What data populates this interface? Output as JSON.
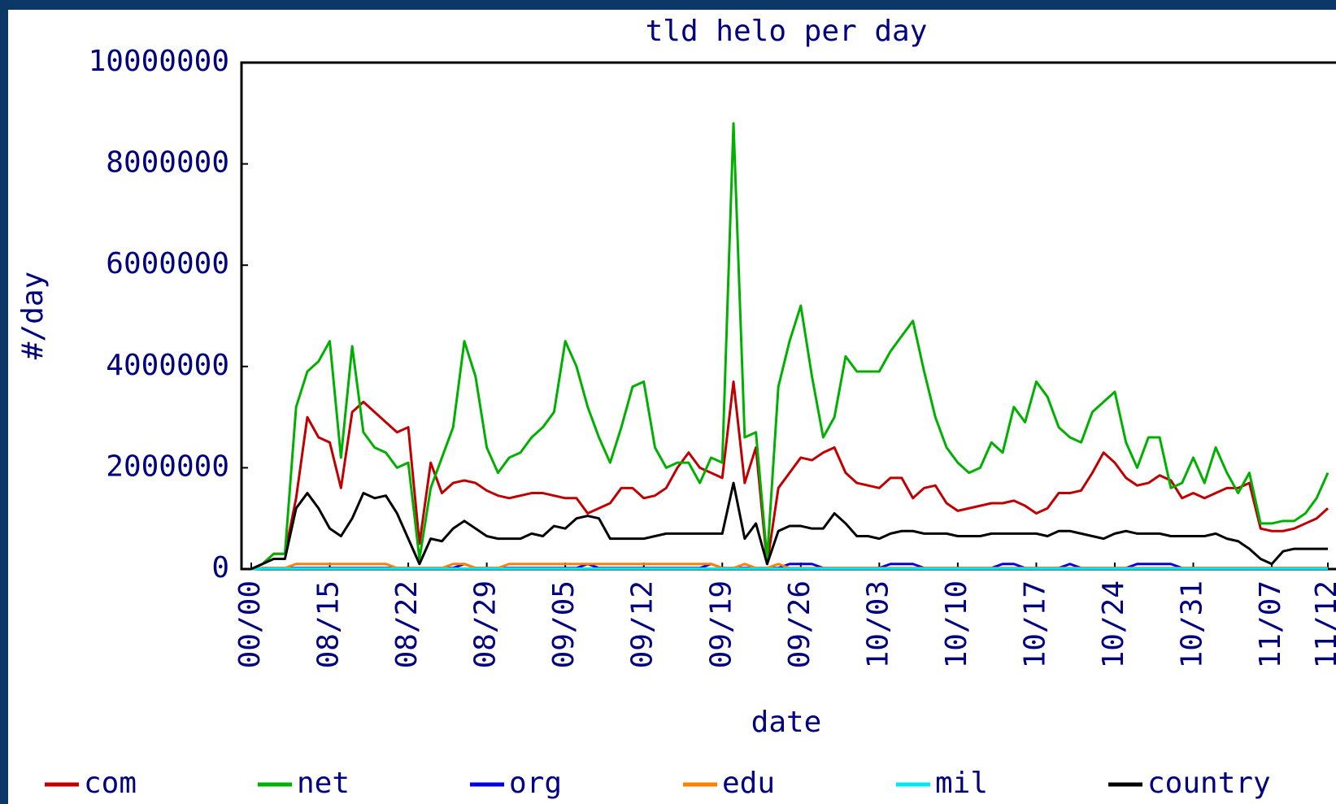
{
  "chart_data": {
    "type": "line",
    "title": "tld helo per day",
    "x_label": "date",
    "y_label": "#/day",
    "categories": [
      "00/00",
      null,
      null,
      null,
      null,
      null,
      null,
      "08/15",
      null,
      null,
      null,
      null,
      null,
      null,
      "08/22",
      null,
      null,
      null,
      null,
      null,
      null,
      "08/29",
      null,
      null,
      null,
      null,
      null,
      null,
      "09/05",
      null,
      null,
      null,
      null,
      null,
      null,
      "09/12",
      null,
      null,
      null,
      null,
      null,
      null,
      "09/19",
      null,
      null,
      null,
      null,
      null,
      null,
      "09/26",
      null,
      null,
      null,
      null,
      null,
      null,
      "10/03",
      null,
      null,
      null,
      null,
      null,
      null,
      "10/10",
      null,
      null,
      null,
      null,
      null,
      null,
      "10/17",
      null,
      null,
      null,
      null,
      null,
      null,
      "10/24",
      null,
      null,
      null,
      null,
      null,
      null,
      "10/31",
      null,
      null,
      null,
      null,
      null,
      null,
      "11/07",
      null,
      null,
      null,
      null,
      "11/12"
    ],
    "ylim": [
      0,
      10000000
    ],
    "yticks": [
      0,
      2000000,
      4000000,
      6000000,
      8000000,
      10000000
    ],
    "series": [
      {
        "name": "com",
        "color": "#c00000",
        "values": [
          0,
          100000,
          300000,
          300000,
          1400000,
          3000000,
          2600000,
          2500000,
          1600000,
          3100000,
          3300000,
          3100000,
          2900000,
          2700000,
          2800000,
          500000,
          2100000,
          1500000,
          1700000,
          1750000,
          1700000,
          1550000,
          1450000,
          1400000,
          1450000,
          1500000,
          1500000,
          1450000,
          1400000,
          1400000,
          1100000,
          1200000,
          1300000,
          1600000,
          1600000,
          1400000,
          1450000,
          1600000,
          2000000,
          2300000,
          2000000,
          1900000,
          1800000,
          3700000,
          1700000,
          2400000,
          100000,
          1600000,
          1900000,
          2200000,
          2150000,
          2300000,
          2400000,
          1900000,
          1700000,
          1650000,
          1600000,
          1800000,
          1800000,
          1400000,
          1600000,
          1650000,
          1300000,
          1150000,
          1200000,
          1250000,
          1300000,
          1300000,
          1350000,
          1250000,
          1100000,
          1200000,
          1500000,
          1500000,
          1550000,
          1900000,
          2300000,
          2100000,
          1800000,
          1650000,
          1700000,
          1850000,
          1750000,
          1400000,
          1500000,
          1400000,
          1500000,
          1600000,
          1600000,
          1700000,
          800000,
          750000,
          750000,
          800000,
          900000,
          1000000,
          1200000
        ]
      },
      {
        "name": "net",
        "color": "#00b000",
        "values": [
          0,
          100000,
          300000,
          300000,
          3200000,
          3900000,
          4100000,
          4500000,
          2200000,
          4400000,
          2700000,
          2400000,
          2300000,
          2000000,
          2100000,
          200000,
          1600000,
          2200000,
          2800000,
          4500000,
          3800000,
          2400000,
          1900000,
          2200000,
          2300000,
          2600000,
          2800000,
          3100000,
          4500000,
          4000000,
          3200000,
          2600000,
          2100000,
          2800000,
          3600000,
          3700000,
          2400000,
          2000000,
          2100000,
          2100000,
          1700000,
          2200000,
          2100000,
          8800000,
          2600000,
          2700000,
          200000,
          3600000,
          4500000,
          5200000,
          3800000,
          2600000,
          3000000,
          4200000,
          3900000,
          3900000,
          3900000,
          4300000,
          4600000,
          4900000,
          3900000,
          3000000,
          2400000,
          2100000,
          1900000,
          2000000,
          2500000,
          2300000,
          3200000,
          2900000,
          3700000,
          3400000,
          2800000,
          2600000,
          2500000,
          3100000,
          3300000,
          3500000,
          2500000,
          2000000,
          2600000,
          2600000,
          1600000,
          1700000,
          2200000,
          1700000,
          2400000,
          1900000,
          1500000,
          1900000,
          900000,
          900000,
          950000,
          950000,
          1100000,
          1400000,
          1900000
        ]
      },
      {
        "name": "org",
        "color": "#0000e0",
        "values": [
          0,
          20000,
          20000,
          20000,
          20000,
          20000,
          20000,
          20000,
          20000,
          20000,
          20000,
          20000,
          20000,
          20000,
          20000,
          20000,
          20000,
          20000,
          20000,
          100000,
          20000,
          20000,
          20000,
          20000,
          20000,
          20000,
          20000,
          20000,
          20000,
          20000,
          100000,
          20000,
          20000,
          20000,
          20000,
          20000,
          20000,
          20000,
          20000,
          20000,
          20000,
          100000,
          20000,
          20000,
          20000,
          20000,
          20000,
          20000,
          100000,
          100000,
          100000,
          20000,
          20000,
          20000,
          20000,
          20000,
          20000,
          100000,
          100000,
          100000,
          20000,
          20000,
          20000,
          20000,
          20000,
          20000,
          20000,
          100000,
          100000,
          20000,
          20000,
          20000,
          20000,
          100000,
          20000,
          20000,
          20000,
          20000,
          20000,
          100000,
          100000,
          100000,
          100000,
          20000,
          20000,
          20000,
          20000,
          20000,
          20000,
          20000,
          20000,
          20000,
          20000,
          20000,
          20000,
          20000,
          20000
        ]
      },
      {
        "name": "edu",
        "color": "#ff8000",
        "values": [
          0,
          20000,
          20000,
          20000,
          100000,
          100000,
          100000,
          100000,
          100000,
          100000,
          100000,
          100000,
          100000,
          20000,
          20000,
          20000,
          20000,
          20000,
          100000,
          100000,
          20000,
          20000,
          20000,
          100000,
          100000,
          100000,
          100000,
          100000,
          100000,
          100000,
          100000,
          100000,
          100000,
          100000,
          100000,
          100000,
          100000,
          100000,
          100000,
          100000,
          100000,
          100000,
          20000,
          20000,
          100000,
          20000,
          20000,
          100000,
          20000,
          20000,
          20000,
          20000,
          20000,
          20000,
          20000,
          20000,
          20000,
          20000,
          20000,
          20000,
          20000,
          20000,
          20000,
          20000,
          20000,
          20000,
          20000,
          20000,
          20000,
          20000,
          20000,
          20000,
          20000,
          20000,
          20000,
          20000,
          20000,
          20000,
          20000,
          20000,
          20000,
          20000,
          20000,
          20000,
          20000,
          20000,
          20000,
          20000,
          20000,
          20000,
          20000,
          20000,
          20000,
          20000,
          20000,
          20000,
          20000
        ]
      },
      {
        "name": "mil",
        "color": "#00e8f0",
        "values": [
          0,
          10000,
          10000,
          10000,
          10000,
          10000,
          10000,
          10000,
          10000,
          10000,
          10000,
          10000,
          10000,
          10000,
          10000,
          10000,
          10000,
          10000,
          10000,
          10000,
          10000,
          10000,
          10000,
          10000,
          10000,
          10000,
          10000,
          10000,
          10000,
          10000,
          10000,
          10000,
          10000,
          10000,
          10000,
          10000,
          10000,
          10000,
          10000,
          10000,
          10000,
          10000,
          10000,
          10000,
          10000,
          10000,
          10000,
          10000,
          10000,
          10000,
          10000,
          10000,
          10000,
          10000,
          10000,
          10000,
          10000,
          10000,
          10000,
          10000,
          10000,
          10000,
          10000,
          10000,
          10000,
          10000,
          10000,
          10000,
          10000,
          10000,
          10000,
          10000,
          10000,
          10000,
          10000,
          10000,
          10000,
          10000,
          10000,
          10000,
          10000,
          10000,
          10000,
          10000,
          10000,
          10000,
          10000,
          10000,
          10000,
          10000,
          10000,
          10000,
          10000,
          10000,
          10000,
          10000,
          10000
        ]
      },
      {
        "name": "country",
        "color": "#000000",
        "values": [
          0,
          100000,
          200000,
          200000,
          1200000,
          1500000,
          1200000,
          800000,
          650000,
          1000000,
          1500000,
          1400000,
          1450000,
          1100000,
          600000,
          100000,
          600000,
          550000,
          800000,
          950000,
          800000,
          650000,
          600000,
          600000,
          600000,
          700000,
          650000,
          850000,
          800000,
          1000000,
          1050000,
          1000000,
          600000,
          600000,
          600000,
          600000,
          650000,
          700000,
          700000,
          700000,
          700000,
          700000,
          700000,
          1700000,
          600000,
          900000,
          100000,
          750000,
          850000,
          850000,
          800000,
          800000,
          1100000,
          900000,
          650000,
          650000,
          600000,
          700000,
          750000,
          750000,
          700000,
          700000,
          700000,
          650000,
          650000,
          650000,
          700000,
          700000,
          700000,
          700000,
          700000,
          650000,
          750000,
          750000,
          700000,
          650000,
          600000,
          700000,
          750000,
          700000,
          700000,
          700000,
          650000,
          650000,
          650000,
          650000,
          700000,
          600000,
          550000,
          400000,
          200000,
          100000,
          350000,
          400000,
          400000,
          400000,
          400000
        ]
      }
    ]
  }
}
